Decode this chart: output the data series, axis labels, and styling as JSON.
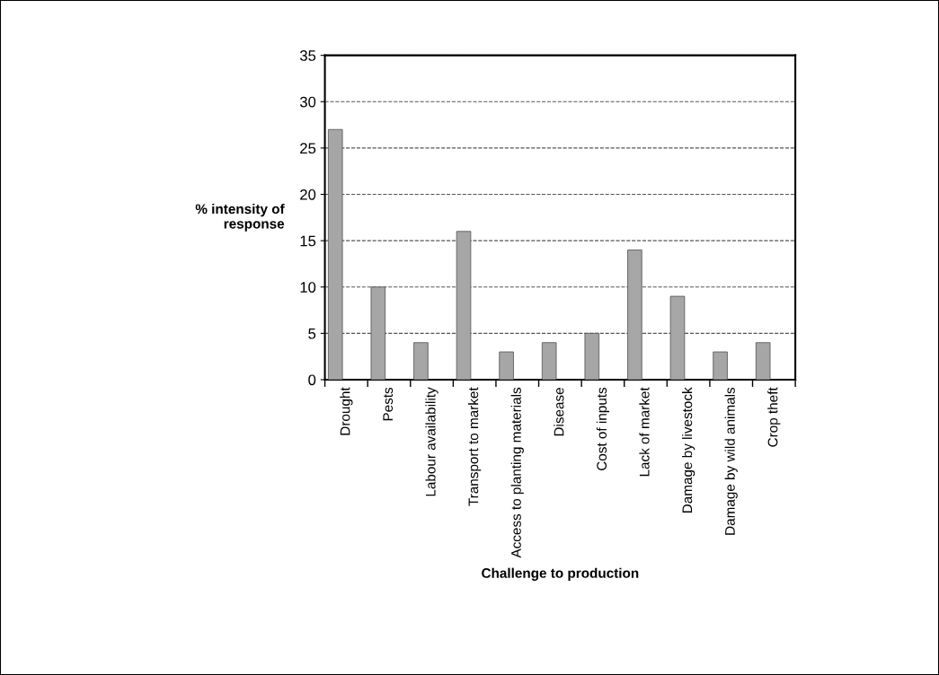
{
  "chart_data": {
    "type": "bar",
    "xlabel": "Challenge to production",
    "ylabel": "% intensity of\nresponse",
    "categories": [
      "Drought",
      "Pests",
      "Labour availability",
      "Transport to market",
      "Access to planting materials",
      "Disease",
      "Cost of inputs",
      "Lack of market",
      "Damage by livestock",
      "Damage by wild animals",
      "Crop theft"
    ],
    "values": [
      27,
      10,
      4,
      16,
      3,
      4,
      5,
      14,
      9,
      3,
      4
    ],
    "color": "#a6a6a6",
    "ylim": [
      0,
      35
    ],
    "yticks": [
      0,
      5,
      10,
      15,
      20,
      25,
      30,
      35
    ],
    "grid": "y",
    "line_style": "dashed",
    "legend": false
  }
}
